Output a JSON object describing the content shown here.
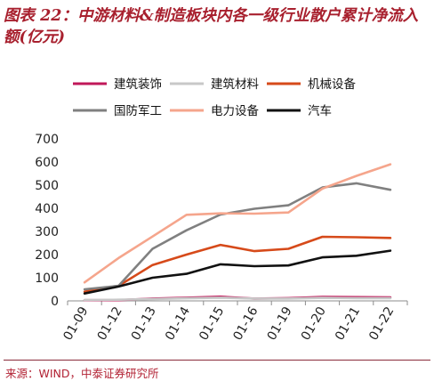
{
  "chart_data": {
    "type": "line",
    "title": "图表 22：中游材料&制造板块内各一级行业散户累计净流入额(亿元)",
    "xlabel": "",
    "ylabel": "",
    "categories": [
      "01-09",
      "01-12",
      "01-13",
      "01-14",
      "01-15",
      "01-16",
      "01-19",
      "01-20",
      "01-21",
      "01-22"
    ],
    "ylim": [
      0,
      700
    ],
    "yticks": [
      0,
      100,
      200,
      300,
      400,
      500,
      600,
      700
    ],
    "grid": false,
    "legend_position": "top",
    "series": [
      {
        "name": "建筑装饰",
        "color": "#c0185a",
        "values": [
          3,
          3,
          10,
          14,
          18,
          10,
          12,
          17,
          16,
          15
        ]
      },
      {
        "name": "建筑材料",
        "color": "#c8c8c8",
        "values": [
          4,
          5,
          8,
          11,
          14,
          10,
          10,
          13,
          12,
          12
        ]
      },
      {
        "name": "机械设备",
        "color": "#d64a1a",
        "values": [
          40,
          65,
          155,
          200,
          242,
          215,
          225,
          277,
          275,
          272
        ]
      },
      {
        "name": "国防军工",
        "color": "#808080",
        "values": [
          50,
          65,
          225,
          305,
          373,
          398,
          413,
          490,
          508,
          480
        ]
      },
      {
        "name": "电力设备",
        "color": "#f5a58c",
        "values": [
          80,
          185,
          278,
          372,
          378,
          377,
          382,
          485,
          540,
          590
        ]
      },
      {
        "name": "汽车",
        "color": "#111111",
        "values": [
          32,
          62,
          100,
          117,
          158,
          150,
          153,
          188,
          195,
          217
        ]
      }
    ]
  },
  "footer": {
    "source": "来源：WIND，中泰证券研究所"
  }
}
